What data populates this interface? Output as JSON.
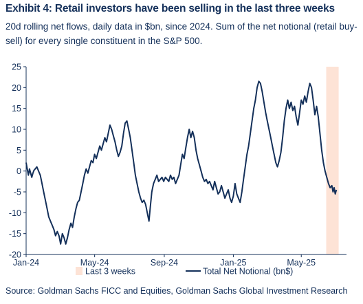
{
  "title": "Exhibit 4: Retail investors have been selling in the last three weeks",
  "subtitle": "20d rolling net flows, daily data in $bn, since 2024. Sum of the net notional (retail buy-sell) for every single constituent in the S&P 500.",
  "source": "Source: Goldman Sachs FICC and Equities, Goldman Sachs Global Investment Research",
  "colors": {
    "line": "#14305a",
    "highlight": "#fde3d6",
    "axis": "#14305a",
    "text": "#14305a"
  },
  "chart_data": {
    "type": "line",
    "ylim": [
      -20,
      25
    ],
    "yticks": [
      -20,
      -15,
      -10,
      -5,
      0,
      5,
      10,
      15,
      20,
      25
    ],
    "x_range": [
      "2024-01-01",
      "2025-07-15"
    ],
    "xticks": [
      {
        "date": "2024-01-01",
        "label": "Jan-24"
      },
      {
        "date": "2024-05-01",
        "label": "May-24"
      },
      {
        "date": "2024-09-01",
        "label": "Sep-24"
      },
      {
        "date": "2025-01-01",
        "label": "Jan-25"
      },
      {
        "date": "2025-05-01",
        "label": "May-25"
      }
    ],
    "grid": false,
    "legend_position": "bottom",
    "highlight": {
      "label": "Last 3 weeks",
      "x_start": "2025-06-14",
      "x_end": "2025-07-06"
    },
    "series": [
      {
        "name": "Total Net Notional (bn$)",
        "points": [
          [
            "2024-01-01",
            2.0
          ],
          [
            "2024-01-03",
            0.5
          ],
          [
            "2024-01-05",
            -1.0
          ],
          [
            "2024-01-07",
            0.5
          ],
          [
            "2024-01-09",
            -0.5
          ],
          [
            "2024-01-11",
            -1.5
          ],
          [
            "2024-01-13",
            -0.5
          ],
          [
            "2024-01-15",
            0.2
          ],
          [
            "2024-01-17",
            0.5
          ],
          [
            "2024-01-20",
            1.0
          ],
          [
            "2024-01-23",
            0.0
          ],
          [
            "2024-01-26",
            -1.0
          ],
          [
            "2024-01-29",
            -3.0
          ],
          [
            "2024-02-01",
            -5.0
          ],
          [
            "2024-02-04",
            -7.0
          ],
          [
            "2024-02-07",
            -9.0
          ],
          [
            "2024-02-10",
            -11.0
          ],
          [
            "2024-02-13",
            -12.0
          ],
          [
            "2024-02-16",
            -13.0
          ],
          [
            "2024-02-19",
            -14.0
          ],
          [
            "2024-02-22",
            -15.5
          ],
          [
            "2024-02-25",
            -14.5
          ],
          [
            "2024-02-28",
            -15.5
          ],
          [
            "2024-03-02",
            -17.5
          ],
          [
            "2024-03-05",
            -15.0
          ],
          [
            "2024-03-08",
            -16.0
          ],
          [
            "2024-03-11",
            -17.5
          ],
          [
            "2024-03-14",
            -16.0
          ],
          [
            "2024-03-17",
            -14.0
          ],
          [
            "2024-03-20",
            -12.5
          ],
          [
            "2024-03-23",
            -13.5
          ],
          [
            "2024-03-26",
            -11.0
          ],
          [
            "2024-03-29",
            -9.0
          ],
          [
            "2024-04-01",
            -7.5
          ],
          [
            "2024-04-04",
            -7.0
          ],
          [
            "2024-04-07",
            -5.0
          ],
          [
            "2024-04-10",
            -3.0
          ],
          [
            "2024-04-13",
            -1.0
          ],
          [
            "2024-04-16",
            0.5
          ],
          [
            "2024-04-19",
            -0.5
          ],
          [
            "2024-04-22",
            1.0
          ],
          [
            "2024-04-25",
            2.5
          ],
          [
            "2024-04-28",
            2.0
          ],
          [
            "2024-05-01",
            4.0
          ],
          [
            "2024-05-04",
            3.0
          ],
          [
            "2024-05-07",
            4.5
          ],
          [
            "2024-05-10",
            6.0
          ],
          [
            "2024-05-13",
            5.0
          ],
          [
            "2024-05-16",
            6.5
          ],
          [
            "2024-05-19",
            8.0
          ],
          [
            "2024-05-22",
            7.0
          ],
          [
            "2024-05-25",
            9.0
          ],
          [
            "2024-05-28",
            11.0
          ],
          [
            "2024-05-31",
            10.0
          ],
          [
            "2024-06-03",
            8.5
          ],
          [
            "2024-06-06",
            7.0
          ],
          [
            "2024-06-09",
            5.0
          ],
          [
            "2024-06-12",
            3.5
          ],
          [
            "2024-06-15",
            4.5
          ],
          [
            "2024-06-18",
            6.0
          ],
          [
            "2024-06-21",
            9.0
          ],
          [
            "2024-06-24",
            11.5
          ],
          [
            "2024-06-27",
            12.0
          ],
          [
            "2024-06-30",
            10.0
          ],
          [
            "2024-07-03",
            8.0
          ],
          [
            "2024-07-06",
            5.0
          ],
          [
            "2024-07-09",
            2.0
          ],
          [
            "2024-07-12",
            -1.0
          ],
          [
            "2024-07-15",
            -3.0
          ],
          [
            "2024-07-18",
            -5.0
          ],
          [
            "2024-07-21",
            -6.5
          ],
          [
            "2024-07-24",
            -7.5
          ],
          [
            "2024-07-27",
            -7.0
          ],
          [
            "2024-07-30",
            -8.0
          ],
          [
            "2024-08-02",
            -10.0
          ],
          [
            "2024-08-05",
            -12.0
          ],
          [
            "2024-08-07",
            -9.0
          ],
          [
            "2024-08-10",
            -5.0
          ],
          [
            "2024-08-13",
            -3.0
          ],
          [
            "2024-08-16",
            -2.0
          ],
          [
            "2024-08-19",
            -1.0
          ],
          [
            "2024-08-22",
            -2.5
          ],
          [
            "2024-08-25",
            -2.0
          ],
          [
            "2024-08-28",
            -1.5
          ],
          [
            "2024-08-31",
            -2.5
          ],
          [
            "2024-09-03",
            -1.5
          ],
          [
            "2024-09-06",
            -2.0
          ],
          [
            "2024-09-09",
            -2.5
          ],
          [
            "2024-09-12",
            -1.0
          ],
          [
            "2024-09-15",
            -2.0
          ],
          [
            "2024-09-18",
            -1.5
          ],
          [
            "2024-09-21",
            -3.0
          ],
          [
            "2024-09-24",
            -2.0
          ],
          [
            "2024-09-27",
            -1.0
          ],
          [
            "2024-09-30",
            1.5
          ],
          [
            "2024-10-03",
            4.0
          ],
          [
            "2024-10-06",
            3.0
          ],
          [
            "2024-10-09",
            5.5
          ],
          [
            "2024-10-12",
            8.0
          ],
          [
            "2024-10-15",
            10.0
          ],
          [
            "2024-10-18",
            8.0
          ],
          [
            "2024-10-21",
            9.5
          ],
          [
            "2024-10-24",
            8.0
          ],
          [
            "2024-10-27",
            5.0
          ],
          [
            "2024-10-30",
            3.0
          ],
          [
            "2024-11-02",
            1.5
          ],
          [
            "2024-11-05",
            0.0
          ],
          [
            "2024-11-08",
            -1.5
          ],
          [
            "2024-11-11",
            -2.5
          ],
          [
            "2024-11-14",
            -2.0
          ],
          [
            "2024-11-17",
            -3.0
          ],
          [
            "2024-11-20",
            -2.5
          ],
          [
            "2024-11-23",
            -3.5
          ],
          [
            "2024-11-26",
            -4.5
          ],
          [
            "2024-11-29",
            -2.5
          ],
          [
            "2024-12-02",
            -4.0
          ],
          [
            "2024-12-05",
            -5.5
          ],
          [
            "2024-12-08",
            -5.0
          ],
          [
            "2024-12-11",
            -3.5
          ],
          [
            "2024-12-14",
            -5.0
          ],
          [
            "2024-12-17",
            -6.5
          ],
          [
            "2024-12-20",
            -5.5
          ],
          [
            "2024-12-23",
            -4.5
          ],
          [
            "2024-12-26",
            -6.5
          ],
          [
            "2024-12-29",
            -7.5
          ],
          [
            "2025-01-01",
            -6.0
          ],
          [
            "2025-01-04",
            -3.0
          ],
          [
            "2025-01-07",
            -5.5
          ],
          [
            "2025-01-10",
            -6.5
          ],
          [
            "2025-01-13",
            -7.5
          ],
          [
            "2025-01-16",
            -5.0
          ],
          [
            "2025-01-19",
            -2.0
          ],
          [
            "2025-01-22",
            1.0
          ],
          [
            "2025-01-25",
            4.0
          ],
          [
            "2025-01-28",
            6.0
          ],
          [
            "2025-01-31",
            9.0
          ],
          [
            "2025-02-03",
            12.0
          ],
          [
            "2025-02-06",
            15.0
          ],
          [
            "2025-02-09",
            17.0
          ],
          [
            "2025-02-12",
            20.0
          ],
          [
            "2025-02-15",
            21.5
          ],
          [
            "2025-02-18",
            21.0
          ],
          [
            "2025-02-21",
            19.0
          ],
          [
            "2025-02-24",
            16.5
          ],
          [
            "2025-02-27",
            14.0
          ],
          [
            "2025-03-02",
            12.0
          ],
          [
            "2025-03-05",
            10.0
          ],
          [
            "2025-03-08",
            8.0
          ],
          [
            "2025-03-11",
            6.0
          ],
          [
            "2025-03-14",
            4.0
          ],
          [
            "2025-03-17",
            2.0
          ],
          [
            "2025-03-20",
            1.0
          ],
          [
            "2025-03-23",
            2.5
          ],
          [
            "2025-03-26",
            4.5
          ],
          [
            "2025-03-29",
            8.0
          ],
          [
            "2025-04-01",
            12.0
          ],
          [
            "2025-04-04",
            15.0
          ],
          [
            "2025-04-07",
            17.0
          ],
          [
            "2025-04-10",
            15.0
          ],
          [
            "2025-04-13",
            16.5
          ],
          [
            "2025-04-16",
            14.5
          ],
          [
            "2025-04-19",
            15.5
          ],
          [
            "2025-04-22",
            13.0
          ],
          [
            "2025-04-25",
            11.0
          ],
          [
            "2025-04-28",
            14.0
          ],
          [
            "2025-05-01",
            17.0
          ],
          [
            "2025-05-04",
            16.0
          ],
          [
            "2025-05-07",
            18.0
          ],
          [
            "2025-05-10",
            16.5
          ],
          [
            "2025-05-13",
            19.0
          ],
          [
            "2025-05-16",
            21.0
          ],
          [
            "2025-05-19",
            20.0
          ],
          [
            "2025-05-22",
            17.0
          ],
          [
            "2025-05-25",
            13.5
          ],
          [
            "2025-05-28",
            15.5
          ],
          [
            "2025-05-31",
            13.0
          ],
          [
            "2025-06-03",
            9.0
          ],
          [
            "2025-06-06",
            5.0
          ],
          [
            "2025-06-09",
            2.0
          ],
          [
            "2025-06-12",
            0.0
          ],
          [
            "2025-06-15",
            -1.5
          ],
          [
            "2025-06-18",
            -3.0
          ],
          [
            "2025-06-21",
            -4.0
          ],
          [
            "2025-06-24",
            -3.5
          ],
          [
            "2025-06-26",
            -5.0
          ],
          [
            "2025-06-28",
            -4.0
          ],
          [
            "2025-06-30",
            -5.5
          ],
          [
            "2025-07-02",
            -4.5
          ]
        ]
      }
    ]
  }
}
